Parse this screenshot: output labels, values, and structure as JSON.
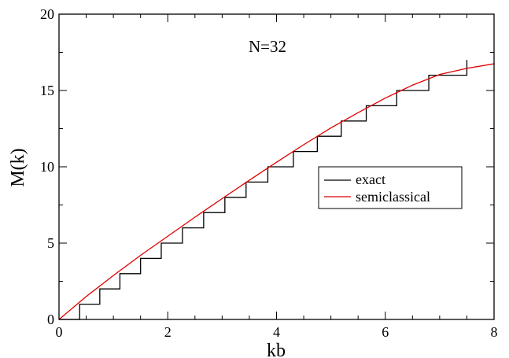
{
  "chart_data": {
    "type": "line",
    "title": "",
    "annotation": "N=32",
    "xlabel": "kb",
    "ylabel": "M(k)",
    "xlim": [
      0,
      8
    ],
    "ylim": [
      0,
      20
    ],
    "xticks": [
      0,
      2,
      4,
      6,
      8
    ],
    "yticks": [
      0,
      5,
      10,
      15,
      20
    ],
    "xtick_labels": [
      "0",
      "2",
      "4",
      "6",
      "8"
    ],
    "ytick_labels": [
      "0",
      "5",
      "10",
      "15",
      "20"
    ],
    "grid": false,
    "legend_position": "right-middle",
    "series": [
      {
        "name": "exact",
        "style": "step",
        "color": "#000000",
        "steps_x": [
          0.38,
          0.75,
          1.12,
          1.5,
          1.88,
          2.27,
          2.66,
          3.05,
          3.44,
          3.84,
          4.31,
          4.75,
          5.19,
          5.65,
          6.21,
          6.8,
          7.5
        ],
        "x_end": 7.5
      },
      {
        "name": "semiclassical",
        "style": "smooth",
        "color": "#e00000",
        "x": [
          0,
          0.5,
          1,
          1.5,
          2,
          2.5,
          3,
          3.5,
          4,
          4.5,
          5,
          5.5,
          6,
          6.5,
          7,
          7.5,
          8
        ],
        "y": [
          0,
          1.5,
          2.88,
          4.2,
          5.45,
          6.7,
          7.92,
          9.12,
          10.3,
          11.45,
          12.55,
          13.55,
          14.5,
          15.35,
          16.05,
          16.45,
          16.75
        ]
      }
    ]
  }
}
